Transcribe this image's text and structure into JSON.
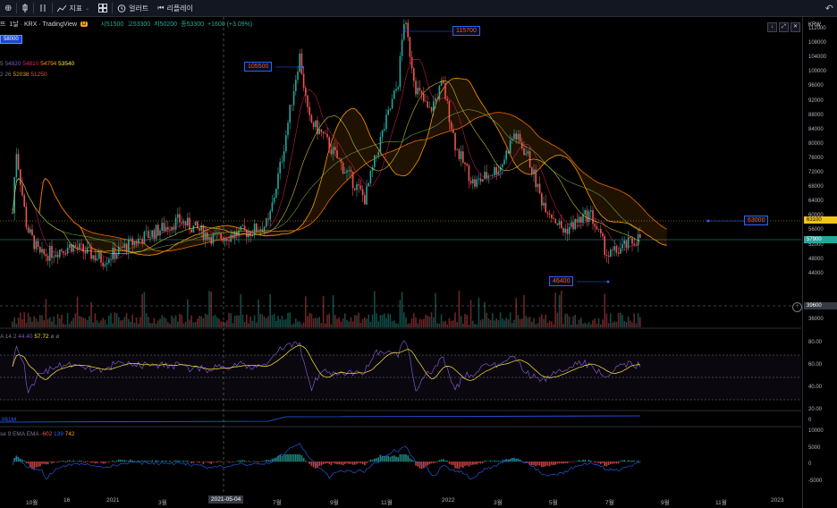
{
  "toolbar": {
    "add_label": "⊕",
    "candle_icon": "candle-style-icon",
    "indicators_label": "지표",
    "layout_icon": "layout-grid-icon",
    "alert_label": "얼러트",
    "replay_label": "리플레이",
    "undo_icon": "undo-icon"
  },
  "symbol": {
    "name": "1날 · KRX · TradingView",
    "prefix": "뜨",
    "badge": "D",
    "ohlc_o": "시51500",
    "ohlc_h": "고53300",
    "ohlc_l": "저50200",
    "ohlc_c": "종53300",
    "change": "+1600 (+3.09%)"
  },
  "volume_badge": "58000",
  "ma_legend": {
    "label": "5",
    "v1": "54820",
    "v2": "54810",
    "v3": "54794",
    "v4": "53540"
  },
  "ichimoku_legend": {
    "label": "2 26",
    "v1": "52038",
    "v2": "51250"
  },
  "price_axis": {
    "currency": "KRW",
    "ticks": [
      "112000",
      "108000",
      "104000",
      "100000",
      "96000",
      "92000",
      "88000",
      "84000",
      "80000",
      "76000",
      "72000",
      "68000",
      "64000",
      "60000",
      "56000",
      "52000",
      "48000",
      "44000",
      "36000"
    ],
    "label_63100": "63100",
    "label_57900": "57900",
    "label_39600": "39600"
  },
  "callouts": {
    "high": "115700",
    "mid": "105500",
    "right": "63000",
    "low": "46400"
  },
  "rsi": {
    "legend_label": "A 14 2",
    "v1": "44.40",
    "v2": "57.72",
    "ticks": [
      "80.00",
      "60.00",
      "40.00",
      "20.00"
    ]
  },
  "obv": {
    "legend_label": ".061M",
    "tick": "0"
  },
  "macd": {
    "legend_label": "se 9 EMA EMA",
    "v1": "-602",
    "v2": "139",
    "v3": "742",
    "ticks": [
      "10000",
      "5000",
      "0",
      "-5000"
    ]
  },
  "xaxis": {
    "ticks": [
      "10월",
      "16",
      "2021",
      "3월",
      "2021-05-04",
      "7월",
      "9월",
      "11월",
      "2022",
      "3월",
      "5월",
      "7월",
      "9월",
      "11월",
      "2023"
    ]
  },
  "colors": {
    "up": "#26a69a",
    "down": "#ef5350",
    "accent": "#2962ff",
    "cloud_line": "#ff9800",
    "rsi": "#7e57c2",
    "signal": "#ffeb3b"
  }
}
